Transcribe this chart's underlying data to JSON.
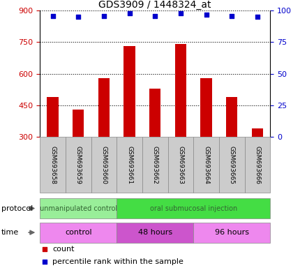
{
  "title": "GDS3909 / 1448324_at",
  "samples": [
    "GSM693658",
    "GSM693659",
    "GSM693660",
    "GSM693661",
    "GSM693662",
    "GSM693663",
    "GSM693664",
    "GSM693665",
    "GSM693666"
  ],
  "counts": [
    490,
    430,
    580,
    730,
    530,
    740,
    580,
    490,
    340
  ],
  "percentile_ranks": [
    96,
    95,
    96,
    98,
    96,
    98,
    97,
    96,
    95
  ],
  "ylim_left": [
    300,
    900
  ],
  "ylim_right": [
    0,
    100
  ],
  "yticks_left": [
    300,
    450,
    600,
    750,
    900
  ],
  "yticks_right": [
    0,
    25,
    50,
    75,
    100
  ],
  "bar_color": "#cc0000",
  "scatter_color": "#0000cc",
  "bar_width": 0.45,
  "protocol_groups": [
    {
      "label": "unmanipulated control",
      "start": 0,
      "end": 3,
      "color": "#99ee99"
    },
    {
      "label": "oral submucosal injection",
      "start": 3,
      "end": 9,
      "color": "#44dd44"
    }
  ],
  "time_groups": [
    {
      "label": "control",
      "start": 0,
      "end": 3,
      "color": "#ee88ee"
    },
    {
      "label": "48 hours",
      "start": 3,
      "end": 6,
      "color": "#cc55cc"
    },
    {
      "label": "96 hours",
      "start": 6,
      "end": 9,
      "color": "#ee88ee"
    }
  ],
  "legend_count_color": "#cc0000",
  "legend_percentile_color": "#0000cc",
  "grid_color": "#000000",
  "tick_color_left": "#cc0000",
  "tick_color_right": "#0000cc",
  "background_color": "#ffffff",
  "sample_box_color": "#cccccc",
  "proto_label_color": "#336633",
  "time_label_color": "#000000"
}
